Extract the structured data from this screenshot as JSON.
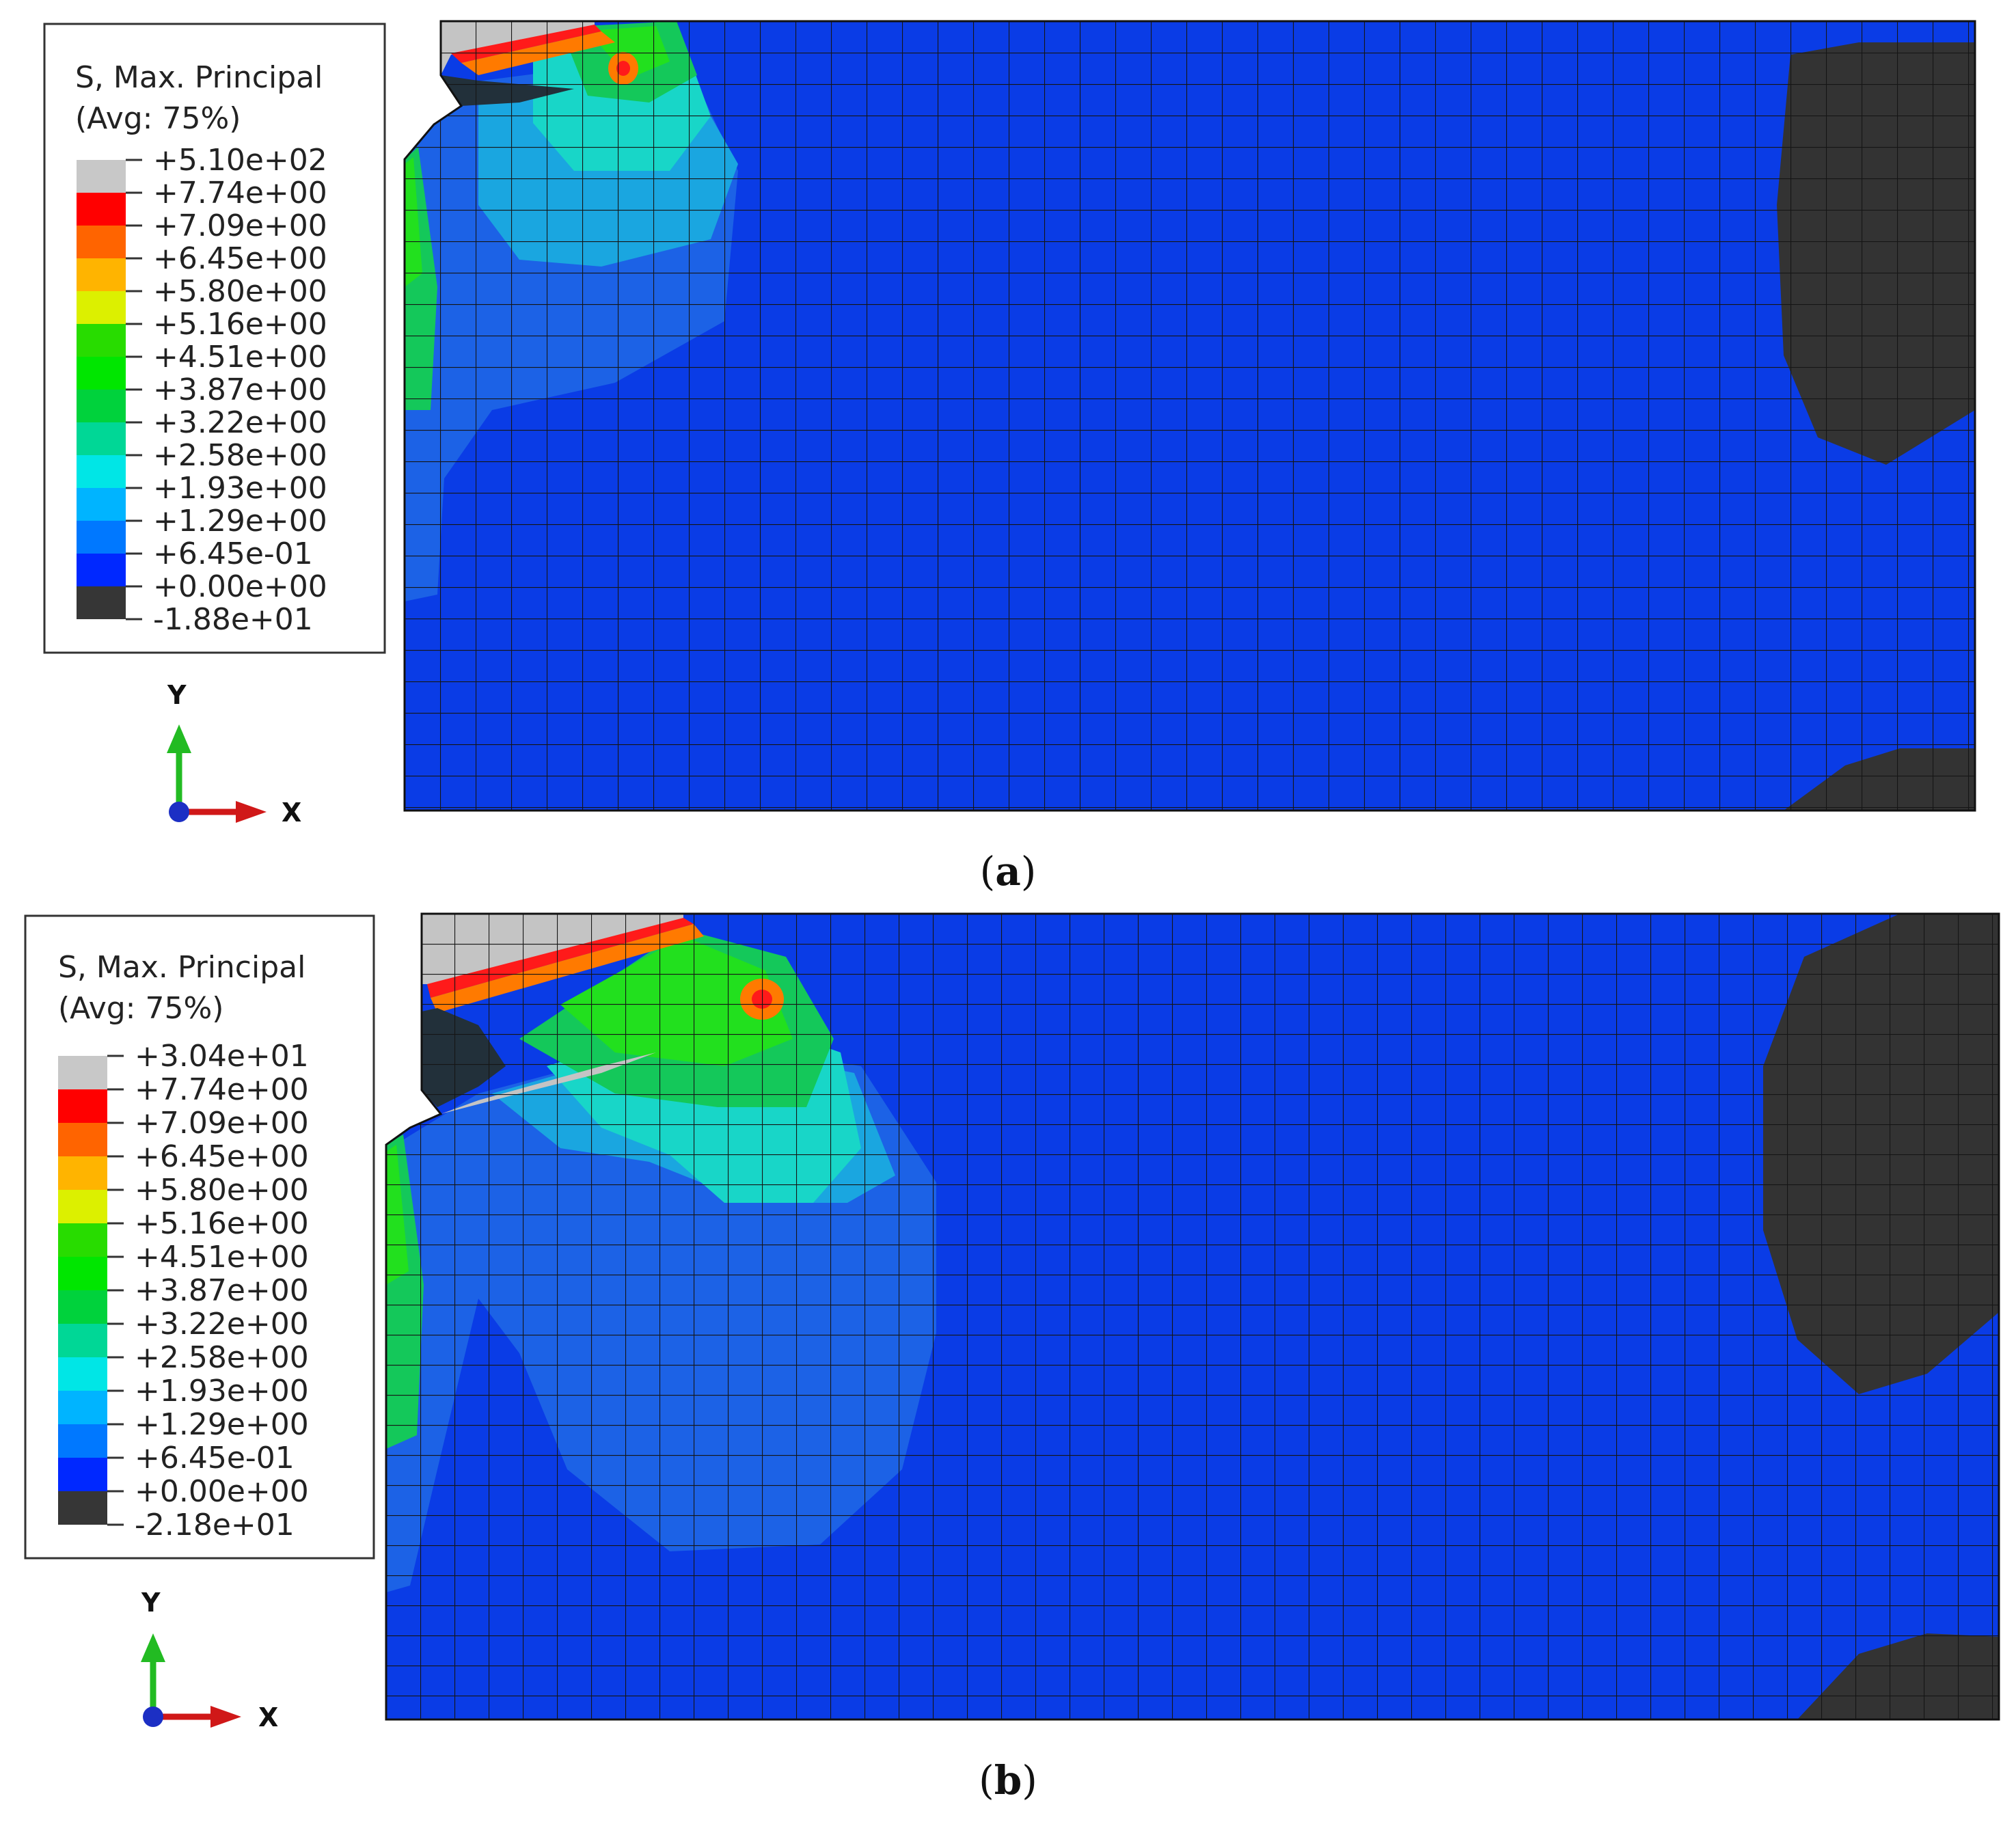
{
  "colors": {
    "meshLine": "#1a1a1a",
    "base": "#0a3ce6",
    "zone1": "#1c62e6",
    "zone2": "#1aa6e0",
    "zone3": "#18d6c8",
    "zone4": "#14c85a",
    "zone5": "#22e01e",
    "zone6": "#ff7a00",
    "zone7": "#ff1a1a",
    "dark": "#333333",
    "grey": "#c4c4c4",
    "axisY": "#22bb22",
    "axisX": "#d01818",
    "axisZ": "#1c2fc4"
  },
  "panels": [
    {
      "id": "a",
      "legend": {
        "title": "S, Max. Principal",
        "subtitle": "(Avg: 75%)",
        "labels": [
          "+5.10e+02",
          "+7.74e+00",
          "+7.09e+00",
          "+6.45e+00",
          "+5.80e+00",
          "+5.16e+00",
          "+4.51e+00",
          "+3.87e+00",
          "+3.22e+00",
          "+2.58e+00",
          "+1.93e+00",
          "+1.29e+00",
          "+6.45e-01",
          "+0.00e+00",
          "-1.88e+01"
        ],
        "swatches": [
          "#c8c8c8",
          "#ff0000",
          "#ff6400",
          "#ffb400",
          "#dcf000",
          "#28dc00",
          "#00e600",
          "#00d23c",
          "#00d796",
          "#00e6e6",
          "#00b4ff",
          "#0078ff",
          "#0028ff",
          "#000aff",
          "#363636"
        ]
      },
      "triad": {
        "y": "Y",
        "x": "X"
      },
      "caption": {
        "open": "(",
        "letter": "a",
        "close": ")"
      }
    },
    {
      "id": "b",
      "legend": {
        "title": "S, Max. Principal",
        "subtitle": "(Avg: 75%)",
        "labels": [
          "+3.04e+01",
          "+7.74e+00",
          "+7.09e+00",
          "+6.45e+00",
          "+5.80e+00",
          "+5.16e+00",
          "+4.51e+00",
          "+3.87e+00",
          "+3.22e+00",
          "+2.58e+00",
          "+1.93e+00",
          "+1.29e+00",
          "+6.45e-01",
          "+0.00e+00",
          "-2.18e+01"
        ],
        "swatches": [
          "#c8c8c8",
          "#ff0000",
          "#ff6400",
          "#ffb400",
          "#dcf000",
          "#28dc00",
          "#00e600",
          "#00d23c",
          "#00d796",
          "#00e6e6",
          "#00b4ff",
          "#0078ff",
          "#0028ff",
          "#000aff",
          "#363636"
        ]
      },
      "triad": {
        "y": "Y",
        "x": "X"
      },
      "caption": {
        "open": "(",
        "letter": "b",
        "close": ")"
      }
    }
  ]
}
